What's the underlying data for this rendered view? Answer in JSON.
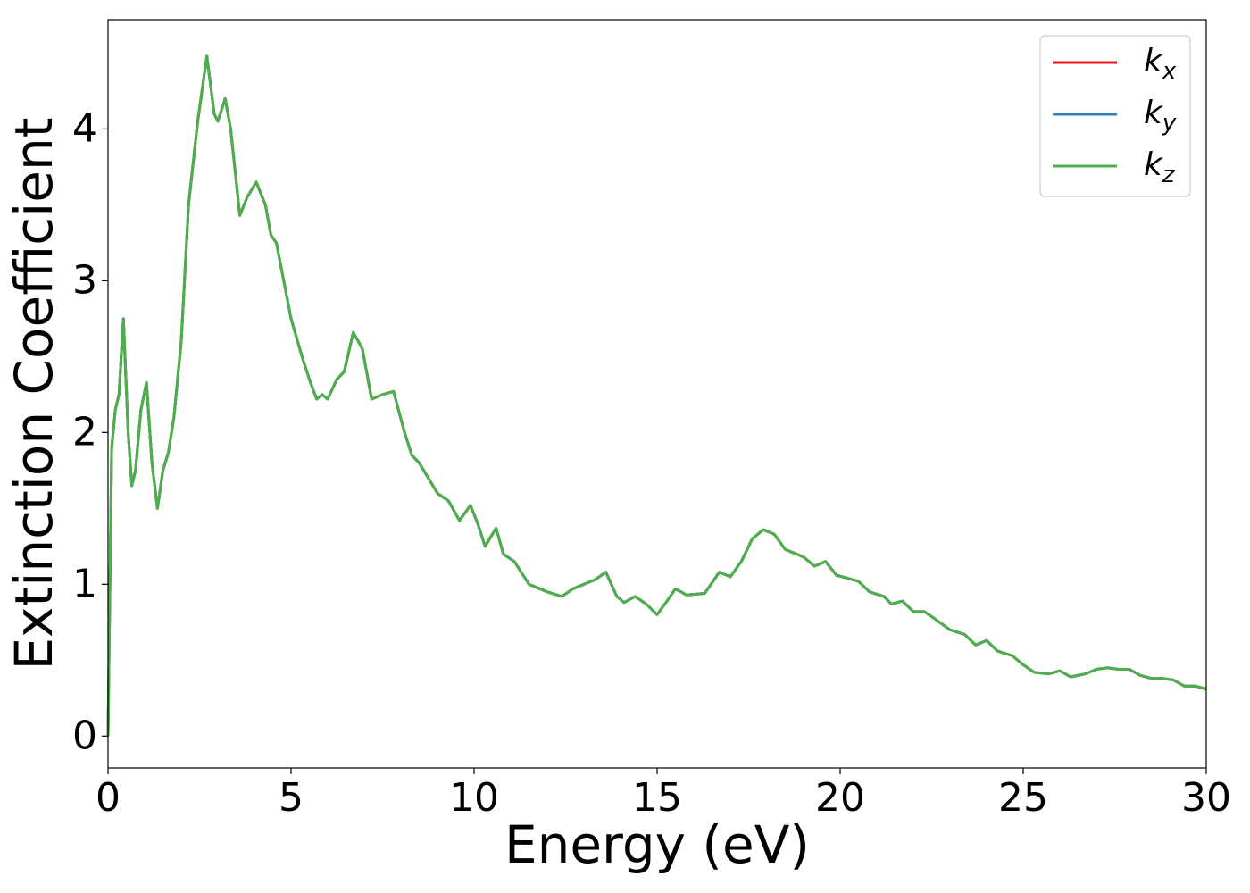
{
  "chart_data": {
    "type": "line",
    "xlabel": "Energy (eV)",
    "ylabel": "Extinction Coefficient",
    "x": [
      0,
      0.1,
      0.2,
      0.3,
      0.42,
      0.55,
      0.65,
      0.75,
      0.9,
      1.05,
      1.2,
      1.35,
      1.5,
      1.65,
      1.8,
      2.0,
      2.2,
      2.45,
      2.7,
      2.9,
      3.0,
      3.2,
      3.35,
      3.6,
      3.8,
      4.05,
      4.3,
      4.45,
      4.6,
      4.8,
      5.0,
      5.3,
      5.5,
      5.7,
      5.85,
      6.0,
      6.25,
      6.45,
      6.7,
      6.95,
      7.2,
      7.5,
      7.8,
      8.1,
      8.3,
      8.5,
      8.7,
      9.0,
      9.3,
      9.6,
      9.9,
      10.1,
      10.3,
      10.6,
      10.8,
      11.1,
      11.5,
      12.0,
      12.4,
      12.7,
      13.0,
      13.3,
      13.6,
      13.9,
      14.1,
      14.4,
      14.7,
      15.0,
      15.3,
      15.5,
      15.8,
      16.3,
      16.7,
      17.0,
      17.3,
      17.6,
      17.9,
      18.2,
      18.5,
      19.0,
      19.3,
      19.6,
      19.9,
      20.5,
      20.8,
      21.2,
      21.4,
      21.7,
      22.0,
      22.3,
      22.6,
      23.0,
      23.4,
      23.7,
      24.0,
      24.3,
      24.7,
      25.0,
      25.3,
      25.7,
      26.0,
      26.3,
      26.7,
      27.0,
      27.3,
      27.6,
      27.9,
      28.2,
      28.5,
      28.8,
      29.1,
      29.4,
      29.7,
      30.0
    ],
    "series": [
      {
        "name": "kx",
        "color": "#e41a1c",
        "values": [
          0,
          1.9,
          2.15,
          2.25,
          2.75,
          2.0,
          1.65,
          1.75,
          2.15,
          2.33,
          1.8,
          1.5,
          1.75,
          1.87,
          2.1,
          2.6,
          3.5,
          4.05,
          4.48,
          4.1,
          4.05,
          4.2,
          4.0,
          3.43,
          3.55,
          3.65,
          3.5,
          3.3,
          3.25,
          3.0,
          2.75,
          2.5,
          2.35,
          2.22,
          2.25,
          2.22,
          2.35,
          2.4,
          2.66,
          2.55,
          2.22,
          2.25,
          2.27,
          2.0,
          1.85,
          1.8,
          1.72,
          1.6,
          1.55,
          1.42,
          1.52,
          1.4,
          1.25,
          1.37,
          1.2,
          1.15,
          1.0,
          0.95,
          0.92,
          0.97,
          1.0,
          1.03,
          1.08,
          0.92,
          0.88,
          0.92,
          0.87,
          0.8,
          0.9,
          0.97,
          0.93,
          0.94,
          1.08,
          1.05,
          1.15,
          1.3,
          1.36,
          1.33,
          1.23,
          1.18,
          1.12,
          1.15,
          1.06,
          1.02,
          0.95,
          0.92,
          0.87,
          0.89,
          0.82,
          0.82,
          0.77,
          0.7,
          0.67,
          0.6,
          0.63,
          0.56,
          0.53,
          0.47,
          0.42,
          0.41,
          0.43,
          0.39,
          0.41,
          0.44,
          0.45,
          0.44,
          0.44,
          0.4,
          0.38,
          0.38,
          0.37,
          0.33,
          0.33,
          0.31
        ]
      },
      {
        "name": "ky",
        "color": "#377eb8",
        "values": [
          0,
          1.9,
          2.15,
          2.25,
          2.75,
          2.0,
          1.65,
          1.75,
          2.15,
          2.33,
          1.8,
          1.5,
          1.75,
          1.87,
          2.1,
          2.6,
          3.5,
          4.05,
          4.48,
          4.1,
          4.05,
          4.2,
          4.0,
          3.43,
          3.55,
          3.65,
          3.5,
          3.3,
          3.25,
          3.0,
          2.75,
          2.5,
          2.35,
          2.22,
          2.25,
          2.22,
          2.35,
          2.4,
          2.66,
          2.55,
          2.22,
          2.25,
          2.27,
          2.0,
          1.85,
          1.8,
          1.72,
          1.6,
          1.55,
          1.42,
          1.52,
          1.4,
          1.25,
          1.37,
          1.2,
          1.15,
          1.0,
          0.95,
          0.92,
          0.97,
          1.0,
          1.03,
          1.08,
          0.92,
          0.88,
          0.92,
          0.87,
          0.8,
          0.9,
          0.97,
          0.93,
          0.94,
          1.08,
          1.05,
          1.15,
          1.3,
          1.36,
          1.33,
          1.23,
          1.18,
          1.12,
          1.15,
          1.06,
          1.02,
          0.95,
          0.92,
          0.87,
          0.89,
          0.82,
          0.82,
          0.77,
          0.7,
          0.67,
          0.6,
          0.63,
          0.56,
          0.53,
          0.47,
          0.42,
          0.41,
          0.43,
          0.39,
          0.41,
          0.44,
          0.45,
          0.44,
          0.44,
          0.4,
          0.38,
          0.38,
          0.37,
          0.33,
          0.33,
          0.31
        ]
      },
      {
        "name": "kz",
        "color": "#4daf4a",
        "values": [
          0,
          1.9,
          2.15,
          2.25,
          2.75,
          2.0,
          1.65,
          1.75,
          2.15,
          2.33,
          1.8,
          1.5,
          1.75,
          1.87,
          2.1,
          2.6,
          3.5,
          4.05,
          4.48,
          4.1,
          4.05,
          4.2,
          4.0,
          3.43,
          3.55,
          3.65,
          3.5,
          3.3,
          3.25,
          3.0,
          2.75,
          2.5,
          2.35,
          2.22,
          2.25,
          2.22,
          2.35,
          2.4,
          2.66,
          2.55,
          2.22,
          2.25,
          2.27,
          2.0,
          1.85,
          1.8,
          1.72,
          1.6,
          1.55,
          1.42,
          1.52,
          1.4,
          1.25,
          1.37,
          1.2,
          1.15,
          1.0,
          0.95,
          0.92,
          0.97,
          1.0,
          1.03,
          1.08,
          0.92,
          0.88,
          0.92,
          0.87,
          0.8,
          0.9,
          0.97,
          0.93,
          0.94,
          1.08,
          1.05,
          1.15,
          1.3,
          1.36,
          1.33,
          1.23,
          1.18,
          1.12,
          1.15,
          1.06,
          1.02,
          0.95,
          0.92,
          0.87,
          0.89,
          0.82,
          0.82,
          0.77,
          0.7,
          0.67,
          0.6,
          0.63,
          0.56,
          0.53,
          0.47,
          0.42,
          0.41,
          0.43,
          0.39,
          0.41,
          0.44,
          0.45,
          0.44,
          0.44,
          0.4,
          0.38,
          0.38,
          0.37,
          0.33,
          0.33,
          0.31
        ]
      }
    ],
    "xlim": [
      0,
      30
    ],
    "xticks": [
      0,
      5,
      10,
      15,
      20,
      25,
      30
    ],
    "ylim": [
      -0.21,
      4.72
    ],
    "yticks": [
      0,
      1,
      2,
      3,
      4
    ],
    "grid": false,
    "legend": "upper right"
  }
}
